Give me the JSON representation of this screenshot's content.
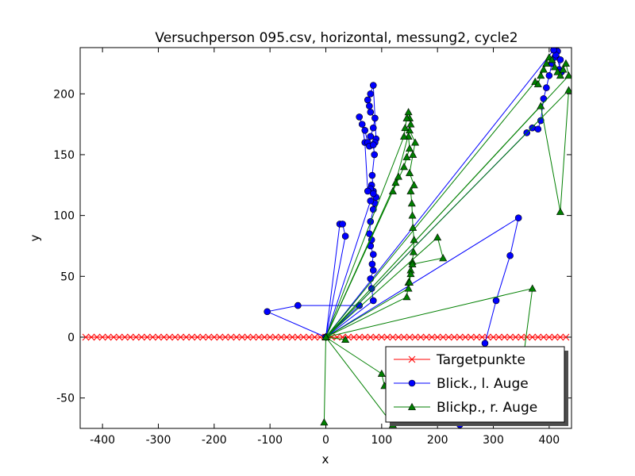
{
  "chart_data": {
    "type": "line",
    "title": "Versuchperson 095.csv, horizontal, messung2, cycle2",
    "xlabel": "x",
    "ylabel": "y",
    "xlim": [
      -440,
      440
    ],
    "ylim": [
      -75,
      238
    ],
    "xticks": [
      -400,
      -300,
      -200,
      -100,
      0,
      100,
      200,
      300,
      400
    ],
    "yticks": [
      -50,
      0,
      50,
      100,
      150,
      200
    ],
    "grid": false,
    "legend_position": "bottom-right",
    "series": [
      {
        "name": "Targetpunkte",
        "color": "#ff0000",
        "marker": "x",
        "x": [
          -430,
          -420,
          -410,
          -400,
          -390,
          -380,
          -370,
          -360,
          -350,
          -340,
          -330,
          -320,
          -310,
          -300,
          -290,
          -280,
          -270,
          -260,
          -250,
          -240,
          -230,
          -220,
          -210,
          -200,
          -190,
          -180,
          -170,
          -160,
          -150,
          -140,
          -130,
          -120,
          -110,
          -100,
          -90,
          -80,
          -70,
          -60,
          -50,
          -40,
          -30,
          -20,
          -10,
          0,
          10,
          20,
          30,
          40,
          50,
          60,
          70,
          80,
          90,
          100,
          110,
          120,
          130,
          140,
          150,
          160,
          170,
          180,
          190,
          200,
          210,
          220,
          230,
          240,
          250,
          260,
          270,
          280,
          290,
          300,
          310,
          320,
          330,
          340,
          350,
          360,
          370,
          380,
          390,
          400,
          410,
          420,
          430
        ],
        "y": [
          0,
          0,
          0,
          0,
          0,
          0,
          0,
          0,
          0,
          0,
          0,
          0,
          0,
          0,
          0,
          0,
          0,
          0,
          0,
          0,
          0,
          0,
          0,
          0,
          0,
          0,
          0,
          0,
          0,
          0,
          0,
          0,
          0,
          0,
          0,
          0,
          0,
          0,
          0,
          0,
          0,
          0,
          0,
          0,
          0,
          0,
          0,
          0,
          0,
          0,
          0,
          0,
          0,
          0,
          0,
          0,
          0,
          0,
          0,
          0,
          0,
          0,
          0,
          0,
          0,
          0,
          0,
          0,
          0,
          0,
          0,
          0,
          0,
          0,
          0,
          0,
          0,
          0,
          0,
          0,
          0,
          0,
          0,
          0,
          0,
          0,
          0
        ]
      },
      {
        "name": "Blick., l. Auge",
        "color": "#0000ff",
        "marker": "o",
        "x": [
          0,
          -105,
          -50,
          60,
          0,
          25,
          30,
          35,
          0,
          85,
          82,
          80,
          85,
          83,
          85,
          80,
          82,
          78,
          80,
          85,
          88,
          90,
          85,
          82,
          80,
          75,
          70,
          65,
          60,
          70,
          75,
          78,
          80,
          85,
          88,
          80,
          78,
          75,
          80,
          85,
          90,
          88,
          85,
          87,
          83,
          85,
          80,
          0,
          360,
          370,
          380,
          385,
          390,
          395,
          400,
          405,
          410,
          415,
          420,
          418,
          422,
          412,
          408,
          0,
          345,
          330,
          305,
          285,
          270,
          255,
          240
        ],
        "y": [
          0,
          21,
          26,
          26,
          0,
          93,
          93,
          83,
          0,
          30,
          40,
          48,
          55,
          60,
          68,
          75,
          80,
          85,
          95,
          105,
          110,
          115,
          120,
          125,
          122,
          120,
          160,
          175,
          181,
          170,
          160,
          157,
          165,
          172,
          180,
          185,
          190,
          195,
          200,
          207,
          163,
          160,
          158,
          150,
          133,
          118,
          112,
          0,
          168,
          172,
          171,
          178,
          196,
          205,
          215,
          225,
          230,
          235,
          228,
          220,
          218,
          232,
          236,
          0,
          98,
          67,
          30,
          -5,
          -30,
          -55,
          -72
        ]
      },
      {
        "name": "Blickp., r. Auge",
        "color": "#007f00",
        "marker": "^",
        "x": [
          0,
          -3,
          0,
          35,
          0,
          100,
          105,
          115,
          120,
          0,
          145,
          148,
          152,
          155,
          157,
          158,
          156,
          155,
          154,
          152,
          158,
          150,
          156,
          160,
          150,
          125,
          120,
          130,
          0,
          140,
          145,
          150,
          148,
          152,
          150,
          148,
          145,
          142,
          140,
          0,
          200,
          210,
          155,
          152,
          150,
          148,
          0,
          375,
          380,
          385,
          390,
          395,
          400,
          405,
          410,
          415,
          420,
          425,
          430,
          435,
          0,
          385,
          420,
          435,
          0,
          370,
          350,
          340
        ],
        "y": [
          0,
          -70,
          0,
          -2,
          0,
          -30,
          -40,
          -50,
          -72,
          0,
          33,
          45,
          55,
          62,
          70,
          80,
          90,
          100,
          110,
          120,
          125,
          135,
          150,
          160,
          170,
          127,
          120,
          132,
          0,
          140,
          148,
          155,
          165,
          175,
          180,
          185,
          180,
          172,
          165,
          0,
          82,
          65,
          60,
          52,
          45,
          40,
          0,
          210,
          208,
          215,
          220,
          225,
          230,
          228,
          222,
          218,
          215,
          220,
          225,
          215,
          0,
          190,
          103,
          203,
          0,
          40,
          -30,
          -60
        ]
      }
    ]
  }
}
